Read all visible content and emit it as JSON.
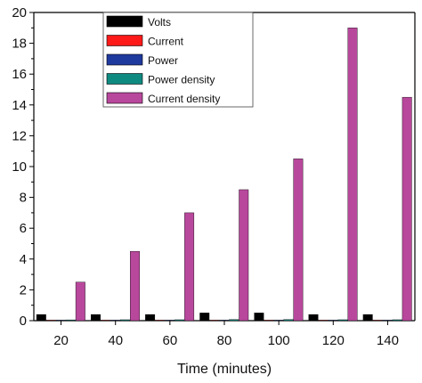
{
  "chart_data": {
    "type": "bar",
    "title": "",
    "xlabel": "Time (minutes)",
    "ylabel": "",
    "categories": [
      "20",
      "40",
      "60",
      "80",
      "100",
      "120",
      "140"
    ],
    "ylim": [
      0,
      20
    ],
    "yticks": [
      0,
      2,
      4,
      6,
      8,
      10,
      12,
      14,
      16,
      18,
      20
    ],
    "grid": false,
    "legend_position": "top-center",
    "series": [
      {
        "name": "Volts",
        "color": "#000000",
        "values": [
          0.4,
          0.4,
          0.4,
          0.5,
          0.5,
          0.4,
          0.4
        ]
      },
      {
        "name": "Current",
        "color": "#ff1a1a",
        "values": [
          0.02,
          0.03,
          0.03,
          0.03,
          0.03,
          0.03,
          0.03
        ]
      },
      {
        "name": "Power",
        "color": "#1f3a9e",
        "values": [
          0.01,
          0.01,
          0.01,
          0.02,
          0.02,
          0.01,
          0.01
        ]
      },
      {
        "name": "Power density",
        "color": "#0f8a80",
        "values": [
          0.05,
          0.06,
          0.06,
          0.07,
          0.07,
          0.06,
          0.06
        ]
      },
      {
        "name": "Current density",
        "color": "#b8489c",
        "values": [
          2.5,
          4.5,
          7.0,
          8.5,
          10.5,
          19.0,
          14.5
        ]
      }
    ]
  }
}
